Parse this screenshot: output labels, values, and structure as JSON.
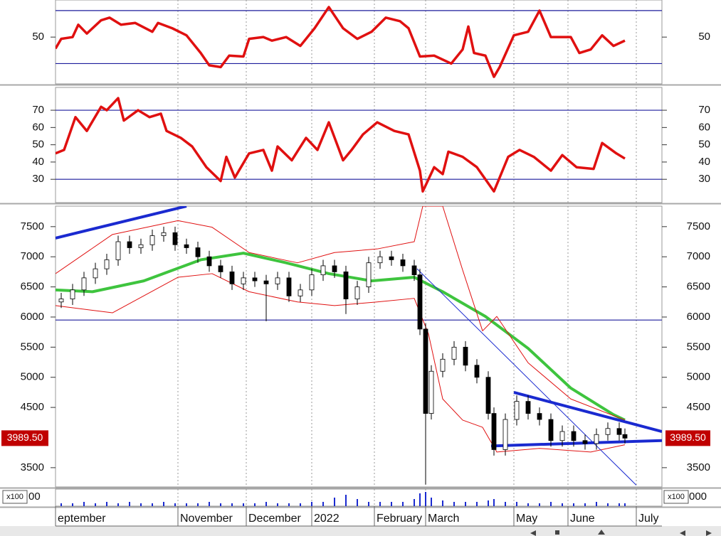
{
  "chart_data": [
    {
      "type": "line",
      "xlim": [
        0,
        213
      ],
      "ylim": [
        -3,
        92
      ],
      "yticks": [
        50
      ],
      "hlines": [
        80,
        20
      ],
      "hline_color": "#1c1c9c",
      "series": [
        {
          "color": "#e01010",
          "x": [
            0,
            2,
            6,
            8,
            11,
            16,
            19,
            23,
            28,
            34,
            36,
            41,
            46,
            51,
            54,
            58,
            61,
            66,
            68,
            73,
            76,
            81,
            86,
            91,
            96,
            101,
            106,
            111,
            116,
            121,
            124,
            128,
            133,
            139,
            143,
            145,
            147,
            151,
            154,
            156,
            161,
            166,
            170,
            174,
            181,
            184,
            188,
            192,
            196,
            200
          ],
          "values": [
            37,
            48,
            50,
            64,
            54,
            69,
            72,
            64,
            66,
            56,
            66,
            60,
            52,
            32,
            18,
            16,
            29,
            28,
            48,
            50,
            46,
            50,
            40,
            60,
            84,
            60,
            48,
            56,
            72,
            68,
            60,
            28,
            29,
            20,
            36,
            62,
            32,
            29,
            5,
            16,
            52,
            56,
            80,
            50,
            50,
            32,
            36,
            52,
            40,
            46
          ]
        }
      ]
    },
    {
      "type": "line",
      "xlim": [
        0,
        213
      ],
      "ylim": [
        16.5,
        83.2
      ],
      "yticks": [
        70,
        60,
        50,
        40,
        30
      ],
      "hlines": [
        70,
        30
      ],
      "hline_color": "#1c1c9c",
      "series": [
        {
          "color": "#e01010",
          "x": [
            0,
            3,
            7,
            11,
            16,
            18,
            22,
            24,
            29,
            33,
            37,
            39,
            44,
            48,
            53,
            58,
            60,
            63,
            68,
            73,
            76,
            78,
            83,
            88,
            92,
            96,
            101,
            104,
            108,
            113,
            119,
            124,
            128,
            129,
            133,
            136,
            138,
            143,
            148,
            154,
            159,
            163,
            168,
            174,
            178,
            183,
            189,
            192,
            197,
            200
          ],
          "values": [
            45,
            47,
            66,
            58,
            72,
            70,
            77,
            64,
            70,
            66,
            68,
            58,
            54,
            49,
            37,
            29,
            43,
            31,
            45,
            47,
            35,
            49,
            41,
            54,
            47,
            63,
            41,
            47,
            56,
            63,
            58,
            56,
            35,
            23,
            37,
            33,
            46,
            43,
            37,
            23,
            43,
            47,
            43,
            35,
            44,
            37,
            36,
            51,
            45,
            42
          ]
        }
      ]
    },
    {
      "type": "candlestick",
      "xlim": [
        0,
        213
      ],
      "ylim": [
        3180,
        7840
      ],
      "yticks": [
        7500,
        7000,
        6500,
        6000,
        5500,
        5000,
        4500,
        3500
      ],
      "hlines": [
        5950
      ],
      "hline_color": "#1c1c9c",
      "x": [
        2,
        6,
        10,
        14,
        18,
        22,
        26,
        30,
        34,
        38,
        42,
        46,
        50,
        54,
        58,
        62,
        66,
        70,
        74,
        78,
        82,
        86,
        90,
        94,
        98,
        102,
        106,
        110,
        114,
        118,
        122,
        126,
        128,
        130,
        132,
        136,
        140,
        144,
        148,
        152,
        154,
        158,
        162,
        166,
        170,
        174,
        178,
        182,
        186,
        190,
        194,
        198,
        200
      ],
      "open": [
        6250,
        6300,
        6450,
        6650,
        6800,
        6950,
        7250,
        7150,
        7200,
        7350,
        7400,
        7200,
        7150,
        7000,
        6850,
        6750,
        6550,
        6650,
        6600,
        6550,
        6650,
        6350,
        6450,
        6700,
        6850,
        6750,
        6300,
        6500,
        6900,
        7000,
        6950,
        6850,
        6700,
        5800,
        4400,
        5100,
        5300,
        5500,
        5200,
        5000,
        4400,
        3800,
        4300,
        4600,
        4400,
        4300,
        3950,
        4100,
        3950,
        3900,
        4050,
        4150,
        4050
      ],
      "high": [
        6400,
        6550,
        6750,
        6900,
        7050,
        7350,
        7350,
        7300,
        7450,
        7500,
        7500,
        7300,
        7250,
        7100,
        6950,
        6850,
        6750,
        6750,
        6700,
        6750,
        6750,
        6550,
        6800,
        6950,
        6950,
        6850,
        6600,
        7000,
        7100,
        7100,
        7050,
        6950,
        6800,
        5900,
        5200,
        5400,
        5600,
        5600,
        5300,
        5100,
        4500,
        4400,
        4700,
        4700,
        4500,
        4400,
        4200,
        4200,
        4050,
        4150,
        4250,
        4250,
        4150
      ],
      "low": [
        6150,
        6200,
        6350,
        6550,
        6700,
        6850,
        7050,
        7050,
        7100,
        7250,
        7100,
        7050,
        6900,
        6750,
        6650,
        6450,
        6450,
        6500,
        5930,
        6450,
        6250,
        6250,
        6350,
        6600,
        6650,
        6050,
        6200,
        6400,
        6800,
        6850,
        6750,
        6600,
        5700,
        3220,
        4300,
        5000,
        5200,
        5100,
        4900,
        4300,
        3700,
        3700,
        4200,
        4300,
        4200,
        3850,
        3850,
        3850,
        3800,
        3800,
        3950,
        3950,
        3900
      ],
      "close": [
        6300,
        6450,
        6650,
        6800,
        6950,
        7250,
        7150,
        7200,
        7350,
        7400,
        7200,
        7150,
        7000,
        6850,
        6750,
        6550,
        6650,
        6600,
        6550,
        6650,
        6350,
        6450,
        6700,
        6850,
        6750,
        6300,
        6500,
        6900,
        7000,
        6950,
        6850,
        6700,
        5800,
        4400,
        5100,
        5300,
        5500,
        5200,
        5000,
        4400,
        3800,
        4300,
        4600,
        4400,
        4300,
        3950,
        4100,
        3950,
        3900,
        4050,
        4150,
        4050,
        3990
      ],
      "series": [
        {
          "color": "#3ec43e",
          "x": [
            0,
            13,
            31,
            51,
            66,
            81,
            96,
            111,
            126,
            136,
            151,
            166,
            181,
            196,
            200
          ],
          "values": [
            6450,
            6420,
            6600,
            6950,
            7060,
            6900,
            6720,
            6600,
            6660,
            6420,
            6010,
            5480,
            4820,
            4380,
            4290
          ]
        },
        {
          "color": "#e01010",
          "x": [
            0,
            20,
            43,
            55,
            68,
            85,
            98,
            113,
            126,
            129,
            136,
            143,
            150,
            155,
            166,
            181,
            200
          ],
          "values": [
            6720,
            7370,
            7600,
            7490,
            7070,
            6900,
            7070,
            7130,
            7250,
            7840,
            7840,
            6780,
            5770,
            6010,
            5240,
            4640,
            4290
          ]
        },
        {
          "color": "#e01010",
          "x": [
            0,
            20,
            43,
            55,
            68,
            85,
            98,
            113,
            126,
            131,
            136,
            143,
            150,
            155,
            170,
            188,
            200
          ],
          "values": [
            6190,
            6070,
            6660,
            6720,
            6420,
            6250,
            6190,
            6250,
            6310,
            5720,
            4640,
            4290,
            4170,
            3760,
            3820,
            3760,
            3880
          ]
        },
        {
          "color": "#1a2ad0",
          "x": [
            0,
            46
          ],
          "values": [
            7310,
            7840
          ]
        },
        {
          "color": "#1a2ad0",
          "x": [
            127,
            204
          ],
          "values": [
            6800,
            3210
          ]
        },
        {
          "color": "#1a2ad0",
          "x": [
            161,
            213
          ],
          "values": [
            4750,
            4100
          ]
        },
        {
          "color": "#1a2ad0",
          "x": [
            153,
            213
          ],
          "values": [
            3860,
            3950
          ]
        }
      ],
      "last": {
        "value": 3989.5,
        "label": "3989.50"
      }
    },
    {
      "type": "bar",
      "xlim": [
        0,
        213
      ],
      "ylim": [
        0,
        12
      ],
      "scale_label": "x100",
      "left_label": "00",
      "right_label": "000",
      "x": [
        2,
        6,
        10,
        14,
        18,
        22,
        26,
        30,
        34,
        38,
        42,
        46,
        50,
        54,
        58,
        62,
        66,
        70,
        74,
        78,
        82,
        86,
        90,
        94,
        98,
        102,
        106,
        110,
        114,
        118,
        122,
        126,
        128,
        130,
        132,
        136,
        140,
        144,
        148,
        152,
        154,
        158,
        162,
        166,
        170,
        174,
        178,
        182,
        186,
        190,
        194,
        198,
        200
      ],
      "values": [
        2,
        2,
        3,
        2,
        3,
        2,
        3,
        2,
        2,
        3,
        2,
        2,
        2,
        3,
        2,
        2,
        2,
        2,
        3,
        2,
        2,
        2,
        3,
        3,
        6,
        8,
        5,
        3,
        3,
        3,
        3,
        5,
        9,
        10,
        6,
        4,
        3,
        3,
        3,
        4,
        5,
        3,
        3,
        2,
        2,
        3,
        2,
        2,
        2,
        3,
        2,
        2,
        2
      ],
      "xticks": [
        {
          "value": 0,
          "label": "eptember"
        },
        {
          "value": 43,
          "label": "November"
        },
        {
          "value": 67,
          "label": "December"
        },
        {
          "value": 90,
          "label": "2022"
        },
        {
          "value": 112,
          "label": "February"
        },
        {
          "value": 130,
          "label": "March"
        },
        {
          "value": 161,
          "label": "May"
        },
        {
          "value": 180,
          "label": "June"
        },
        {
          "value": 204,
          "label": "July"
        }
      ]
    }
  ]
}
